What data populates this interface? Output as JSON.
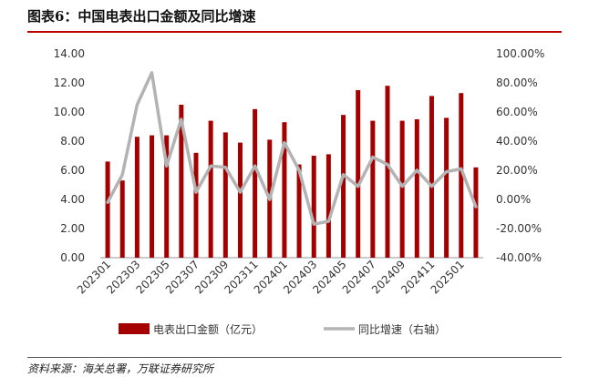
{
  "header": {
    "title": "图表6：中国电表出口金额及同比增速"
  },
  "footer": {
    "source": "资料来源：海关总署，万联证券研究所"
  },
  "colors": {
    "bar": "#a50000",
    "line": "#b3b3b3",
    "title_rule": "#c00000"
  },
  "chart_data": {
    "type": "bar+line",
    "categories": [
      "202301",
      "202302",
      "202303",
      "202304",
      "202305",
      "202306",
      "202307",
      "202308",
      "202309",
      "202310",
      "202311",
      "202312",
      "202401",
      "202402",
      "202403",
      "202404",
      "202405",
      "202406",
      "202407",
      "202408",
      "202409",
      "202410",
      "202411",
      "202412",
      "202501",
      "202502"
    ],
    "x_tick_labels": [
      "202301",
      "202303",
      "202305",
      "202307",
      "202309",
      "202311",
      "202401",
      "202403",
      "202405",
      "202407",
      "202409",
      "202411",
      "202501"
    ],
    "left_axis": {
      "ylim": [
        0,
        14
      ],
      "ticks": [
        "0.00",
        "2.00",
        "4.00",
        "6.00",
        "8.00",
        "10.00",
        "12.00",
        "14.00"
      ]
    },
    "right_axis": {
      "ylim": [
        -40,
        100
      ],
      "ticks": [
        "-40.00%",
        "-20.00%",
        "0.00%",
        "20.00%",
        "40.00%",
        "60.00%",
        "80.00%",
        "100.00%"
      ]
    },
    "series": [
      {
        "name": "电表出口金额（亿元）",
        "type": "bar",
        "axis": "left",
        "values": [
          6.6,
          5.3,
          8.3,
          8.4,
          8.4,
          10.5,
          7.2,
          9.4,
          8.6,
          7.9,
          10.2,
          8.1,
          9.3,
          6.4,
          7.0,
          7.1,
          9.8,
          11.5,
          9.4,
          11.8,
          9.4,
          9.5,
          11.1,
          9.6,
          11.3,
          6.2
        ]
      },
      {
        "name": "同比增速（右轴）",
        "type": "line",
        "axis": "right",
        "values": [
          -2,
          17,
          65,
          87,
          23,
          55,
          5,
          23,
          22,
          5,
          23,
          0,
          39,
          20,
          -17,
          -15,
          17,
          9,
          29,
          24,
          9,
          20,
          9,
          19,
          21,
          -5
        ]
      }
    ],
    "legend_position": "bottom"
  }
}
